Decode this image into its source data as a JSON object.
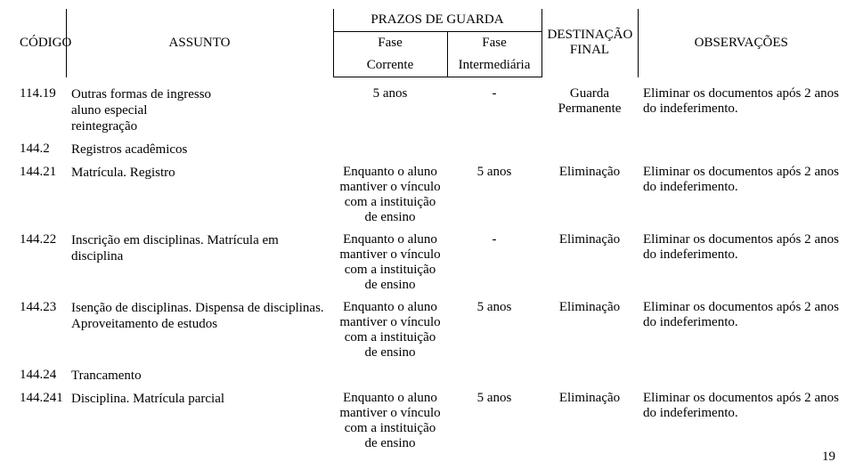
{
  "header": {
    "col_codigo": "CÓDIGO",
    "col_assunto": "ASSUNTO",
    "prazos_title": "PRAZOS DE GUARDA",
    "fase_label": "Fase",
    "fase1_sub": "Corrente",
    "fase2_sub": "Intermediária",
    "col_dest": "DESTINAÇÃO FINAL",
    "col_obs": "OBSERVAÇÕES"
  },
  "rows": [
    {
      "code": "114.19",
      "assunto": "Outras formas de ingresso\naluno especial\nreintegração",
      "fc": "5 anos",
      "fi": "-",
      "dest": "Guarda Permanente",
      "obs": "Eliminar os documentos após 2 anos do indeferimento."
    },
    {
      "code": "144.2",
      "assunto": "Registros acadêmicos",
      "section": true
    },
    {
      "code": "144.21",
      "assunto": "Matrícula. Registro",
      "fc": "Enquanto o aluno mantiver o vínculo com a instituição de ensino",
      "fi": "5 anos",
      "dest": "Eliminação",
      "obs": "Eliminar os documentos após 2 anos do indeferimento."
    },
    {
      "code": "144.22",
      "assunto": "Inscrição em disciplinas. Matrícula em disciplina",
      "fc": "Enquanto o aluno mantiver o vínculo com a instituição de ensino",
      "fi": "-",
      "dest": "Eliminação",
      "obs": "Eliminar os documentos após 2 anos do indeferimento."
    },
    {
      "code": "144.23",
      "assunto": "Isenção de disciplinas. Dispensa de disciplinas. Aproveitamento de estudos",
      "fc": "Enquanto o aluno mantiver o vínculo com a instituição de ensino",
      "fi": "5 anos",
      "dest": "Eliminação",
      "obs": "Eliminar os documentos após 2 anos do indeferimento."
    },
    {
      "code": "144.24",
      "assunto": "Trancamento",
      "section": true
    },
    {
      "code": "144.241",
      "assunto": "Disciplina. Matrícula parcial",
      "fc": "Enquanto o aluno mantiver o vínculo com a instituição de ensino",
      "fi": "5 anos",
      "dest": "Eliminação",
      "obs": "Eliminar os documentos após 2 anos do indeferimento."
    }
  ],
  "page_number": "19"
}
